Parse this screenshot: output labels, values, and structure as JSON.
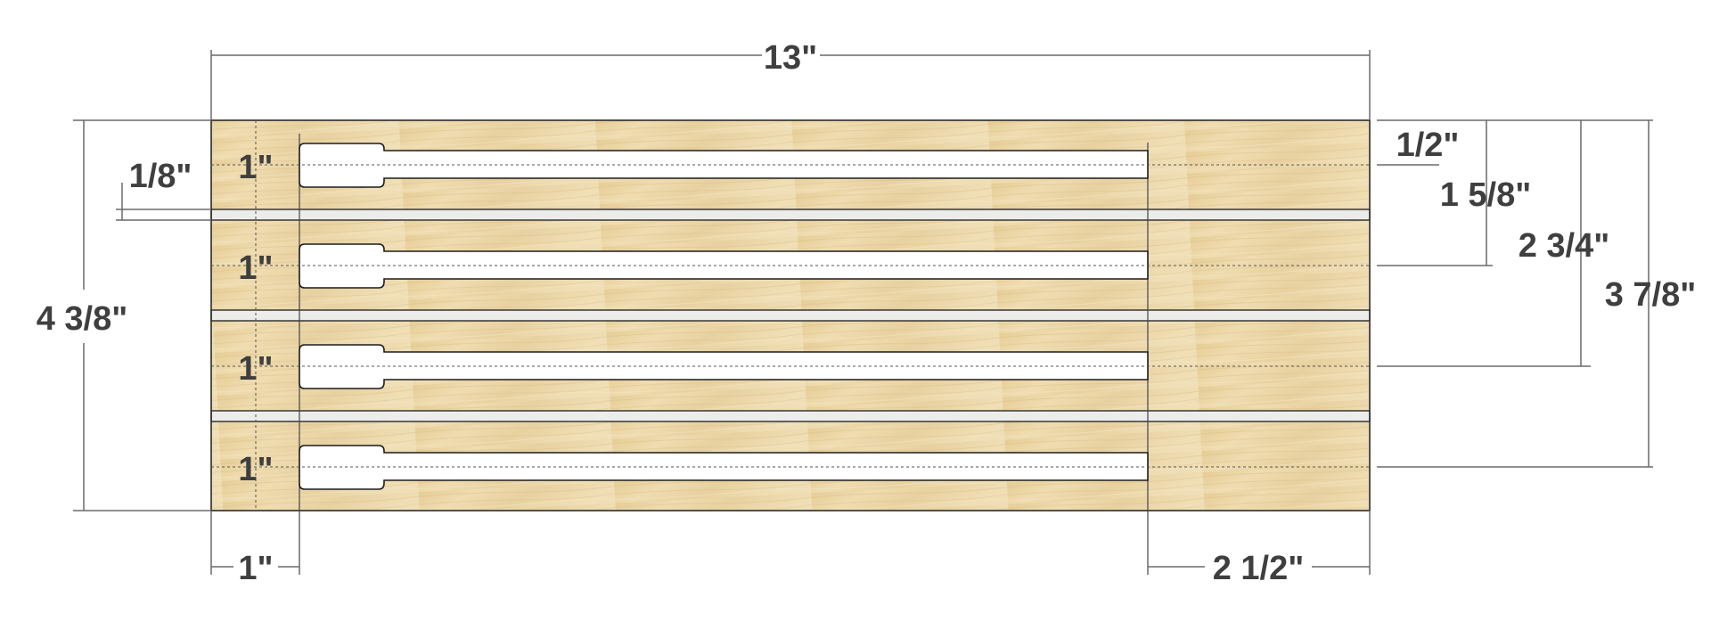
{
  "dimensions": {
    "overall_width": "13\"",
    "overall_height": "4 3/8\"",
    "gap": "1/8\"",
    "tag_height": "1\"",
    "left_margin": "1\"",
    "right_margin": "2 1/2\"",
    "offsets": [
      "1/2\"",
      "1 5/8\"",
      "2 3/4\"",
      "3 7/8\""
    ]
  },
  "colors": {
    "wood_light": "#eedcb0",
    "wood_dark": "#e2c78e",
    "gap_fill": "#ececea",
    "dimension_text": "#3f3f3f"
  }
}
